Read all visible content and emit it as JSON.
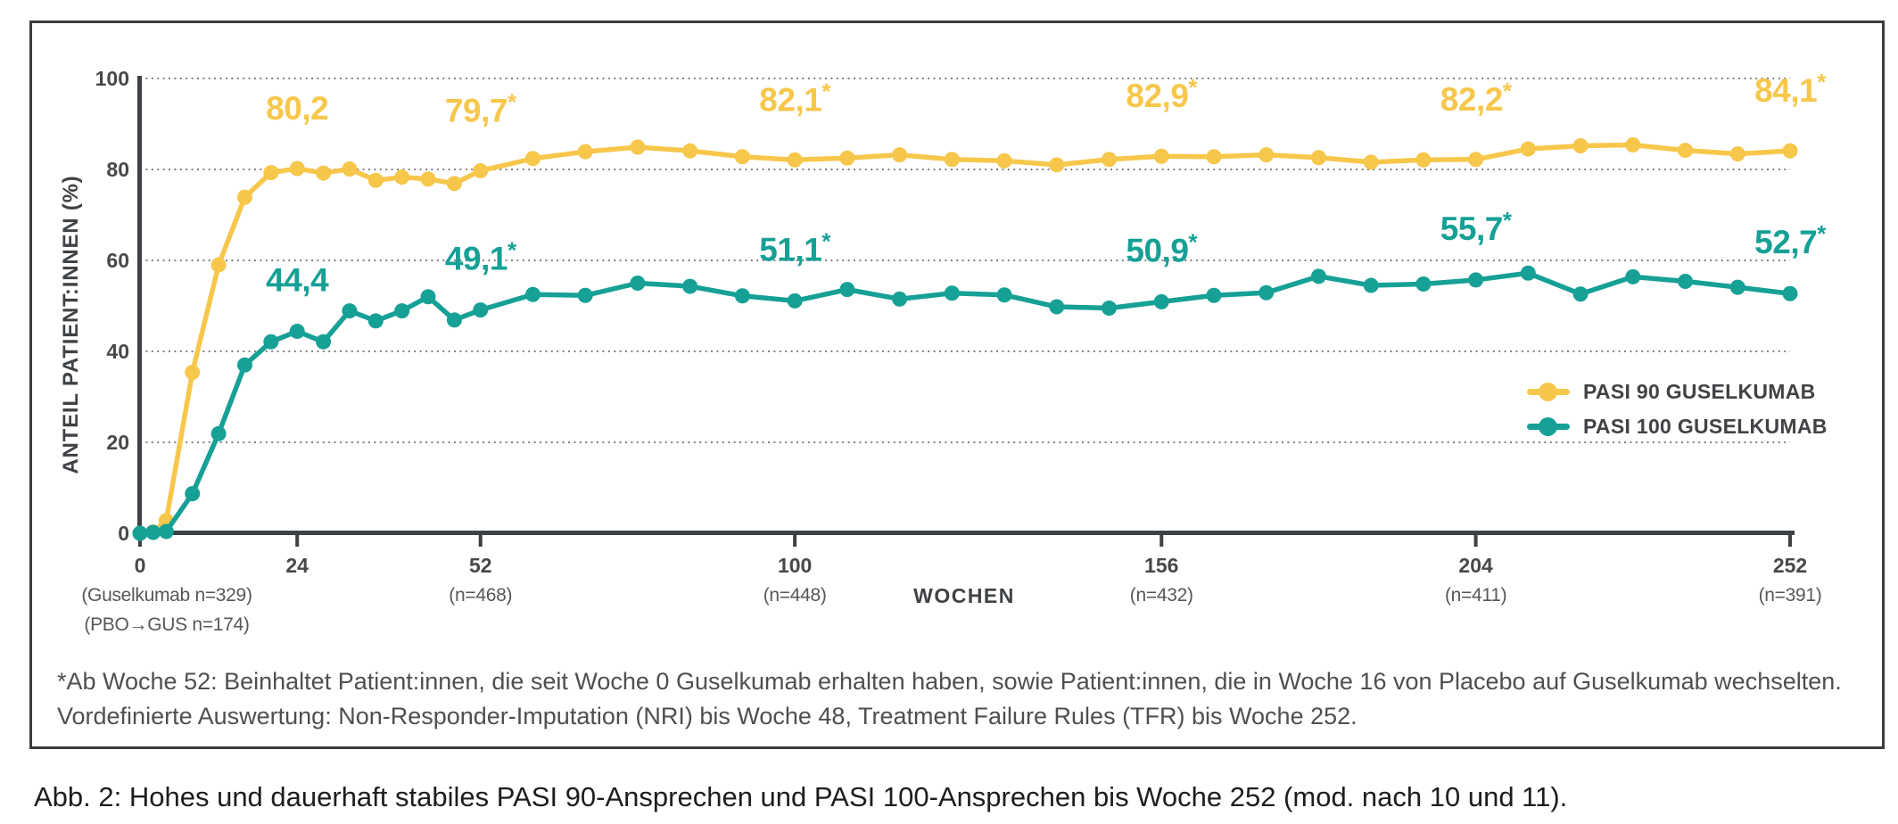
{
  "figure": {
    "y_axis_title": "ANTEIL PATIENT:INNEN (%)",
    "x_axis_title": "WOCHEN",
    "footnote_line1": "*Ab Woche 52: Beinhaltet Patient:innen, die seit Woche 0 Guselkumab erhalten haben, sowie Patient:innen, die in Woche 16 von Placebo auf Guselkumab wechselten.",
    "footnote_line2": "Vordefinierte Auswertung: Non-Responder-Imputation (NRI) bis Woche 48, Treatment Failure Rules (TFR) bis Woche 252.",
    "caption": "Abb. 2: Hohes und dauerhaft stabiles PASI 90-Ansprechen und PASI 100-Ansprechen bis Woche 252 (mod. nach 10 und 11)."
  },
  "chart_data": {
    "type": "line",
    "title": "",
    "xlabel": "WOCHEN",
    "ylabel": "ANTEIL PATIENT:INNEN (%)",
    "xlim": [
      0,
      252
    ],
    "ylim": [
      0,
      100
    ],
    "yticks": [
      0,
      20,
      40,
      60,
      80,
      100
    ],
    "grid": "dotted horizontal",
    "legend_position": "right, inside plot",
    "xticks": [
      {
        "week": 0,
        "label": "0",
        "sub": [
          "(Guselkumab n=329)",
          "(PBO→GUS n=174)"
        ]
      },
      {
        "week": 24,
        "label": "24",
        "sub": []
      },
      {
        "week": 52,
        "label": "52",
        "sub": [
          "(n=468)"
        ]
      },
      {
        "week": 100,
        "label": "100",
        "sub": [
          "(n=448)"
        ]
      },
      {
        "week": 156,
        "label": "156",
        "sub": [
          "(n=432)"
        ]
      },
      {
        "week": 204,
        "label": "204",
        "sub": [
          "(n=411)"
        ]
      },
      {
        "week": 252,
        "label": "252",
        "sub": [
          "(n=391)"
        ]
      }
    ],
    "weeks": [
      0,
      2,
      4,
      8,
      12,
      16,
      20,
      24,
      28,
      32,
      36,
      40,
      44,
      48,
      52,
      60,
      68,
      76,
      84,
      92,
      100,
      108,
      116,
      124,
      132,
      140,
      148,
      156,
      164,
      172,
      180,
      188,
      196,
      204,
      212,
      220,
      228,
      236,
      244,
      252
    ],
    "series": [
      {
        "name": "PASI 90 GUSELKUMAB",
        "color": "#F7C74B",
        "values": [
          0,
          0.3,
          2.8,
          35.4,
          59.0,
          73.9,
          79.3,
          80.2,
          79.2,
          80.1,
          77.6,
          78.3,
          77.9,
          76.9,
          79.7,
          82.4,
          83.9,
          84.9,
          84.1,
          82.8,
          82.1,
          82.5,
          83.2,
          82.2,
          81.9,
          81.0,
          82.2,
          82.9,
          82.8,
          83.2,
          82.6,
          81.6,
          82.1,
          82.2,
          84.5,
          85.2,
          85.4,
          84.2,
          83.4,
          84.1
        ]
      },
      {
        "name": "PASI 100 GUSELKUMAB",
        "color": "#16A096",
        "values": [
          0,
          0.2,
          0.4,
          8.7,
          21.9,
          37.0,
          42.1,
          44.4,
          42.1,
          48.9,
          46.7,
          48.9,
          52.0,
          46.9,
          49.1,
          52.5,
          52.3,
          55.0,
          54.3,
          52.2,
          51.1,
          53.6,
          51.5,
          52.8,
          52.4,
          49.8,
          49.5,
          50.9,
          52.3,
          52.9,
          56.5,
          54.5,
          54.8,
          55.7,
          57.2,
          52.6,
          56.4,
          55.4,
          54.1,
          52.7
        ]
      }
    ],
    "annotations": [
      {
        "series": 0,
        "week": 24,
        "text": "80,2",
        "starred": false
      },
      {
        "series": 0,
        "week": 52,
        "text": "79,7",
        "starred": true
      },
      {
        "series": 0,
        "week": 100,
        "text": "82,1",
        "starred": true
      },
      {
        "series": 0,
        "week": 156,
        "text": "82,9",
        "starred": true
      },
      {
        "series": 0,
        "week": 204,
        "text": "82,2",
        "starred": true
      },
      {
        "series": 0,
        "week": 252,
        "text": "84,1",
        "starred": true
      },
      {
        "series": 1,
        "week": 24,
        "text": "44,4",
        "starred": false
      },
      {
        "series": 1,
        "week": 52,
        "text": "49,1",
        "starred": true
      },
      {
        "series": 1,
        "week": 100,
        "text": "51,1",
        "starred": true
      },
      {
        "series": 1,
        "week": 156,
        "text": "50,9",
        "starred": true
      },
      {
        "series": 1,
        "week": 204,
        "text": "55,7",
        "starred": true
      },
      {
        "series": 1,
        "week": 252,
        "text": "52,7",
        "starred": true
      }
    ],
    "colors": {
      "pasi90": "#F7C74B",
      "pasi100": "#16A096",
      "axis": "#3f4245",
      "gridline": "#808285",
      "tick_text": "#47484a",
      "sub_text": "#55575a",
      "footnote_text": "#4d4f51",
      "caption_text": "#1d1d1f",
      "border": "#3a3c3e"
    }
  }
}
